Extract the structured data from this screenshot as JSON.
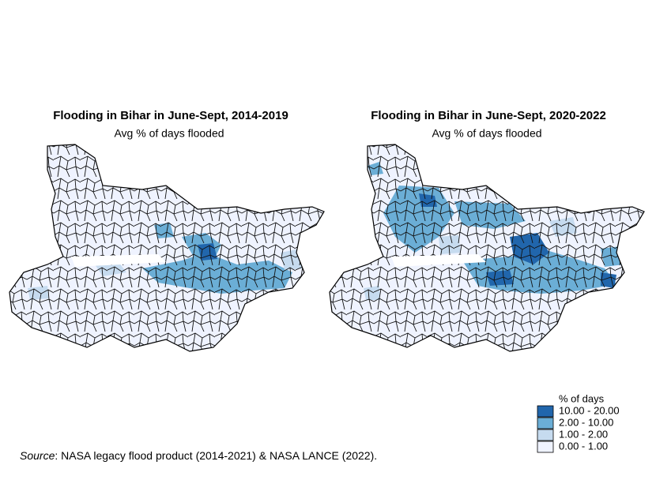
{
  "maps": [
    {
      "title": "Flooding in Bihar in June-Sept, 2014-2019",
      "subtitle": "Avg % of days flooded"
    },
    {
      "title": "Flooding in Bihar in June-Sept, 2020-2022",
      "subtitle": "Avg % of days flooded"
    }
  ],
  "legend": {
    "title": "% of days",
    "items": [
      {
        "label": "10.00 - 20.00",
        "color": "#2166ac"
      },
      {
        "label": "2.00 - 10.00",
        "color": "#6baed6"
      },
      {
        "label": "1.00 - 2.00",
        "color": "#c6dbef"
      },
      {
        "label": "0.00 - 1.00",
        "color": "#eff3ff"
      }
    ]
  },
  "source": {
    "label": "Source",
    "text": ": NASA legacy flood product (2014-2021) & NASA LANCE (2022)."
  }
}
